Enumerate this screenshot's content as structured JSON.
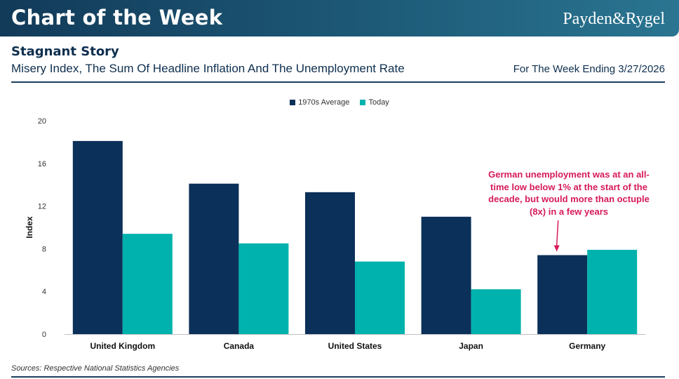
{
  "header": {
    "banner_title": "Chart of the Week",
    "brand": "Payden&Rygel",
    "subtitle": "Stagnant Story",
    "description": "Misery Index, The Sum Of Headline Inflation And The Unemployment Rate",
    "week": "For The Week Ending 3/27/2026",
    "source": "Sources: Respective National Statistics Agencies"
  },
  "colors": {
    "series1": "#0b3059",
    "series2": "#00b2ad",
    "annotation": "#d61a5c",
    "banner": "#1d5a78"
  },
  "chart_data": {
    "type": "bar",
    "categories": [
      "United Kingdom",
      "Canada",
      "United States",
      "Japan",
      "Germany"
    ],
    "series": [
      {
        "name": "1970s Average",
        "values": [
          18.1,
          14.1,
          13.3,
          11.0,
          7.4
        ]
      },
      {
        "name": "Today",
        "values": [
          9.4,
          8.5,
          6.8,
          4.2,
          7.9
        ]
      }
    ],
    "ylabel": "Index",
    "xlabel": "",
    "ylim": [
      0,
      20
    ],
    "yticks": [
      0,
      4,
      8,
      12,
      16,
      20
    ],
    "legend_position": "top-center",
    "annotation": {
      "text": "German unemployment was at an all-time low below 1% at the start of the decade, but would more than octuple (8x) in a few years",
      "target_category": "Germany",
      "target_series": "1970s Average"
    }
  }
}
